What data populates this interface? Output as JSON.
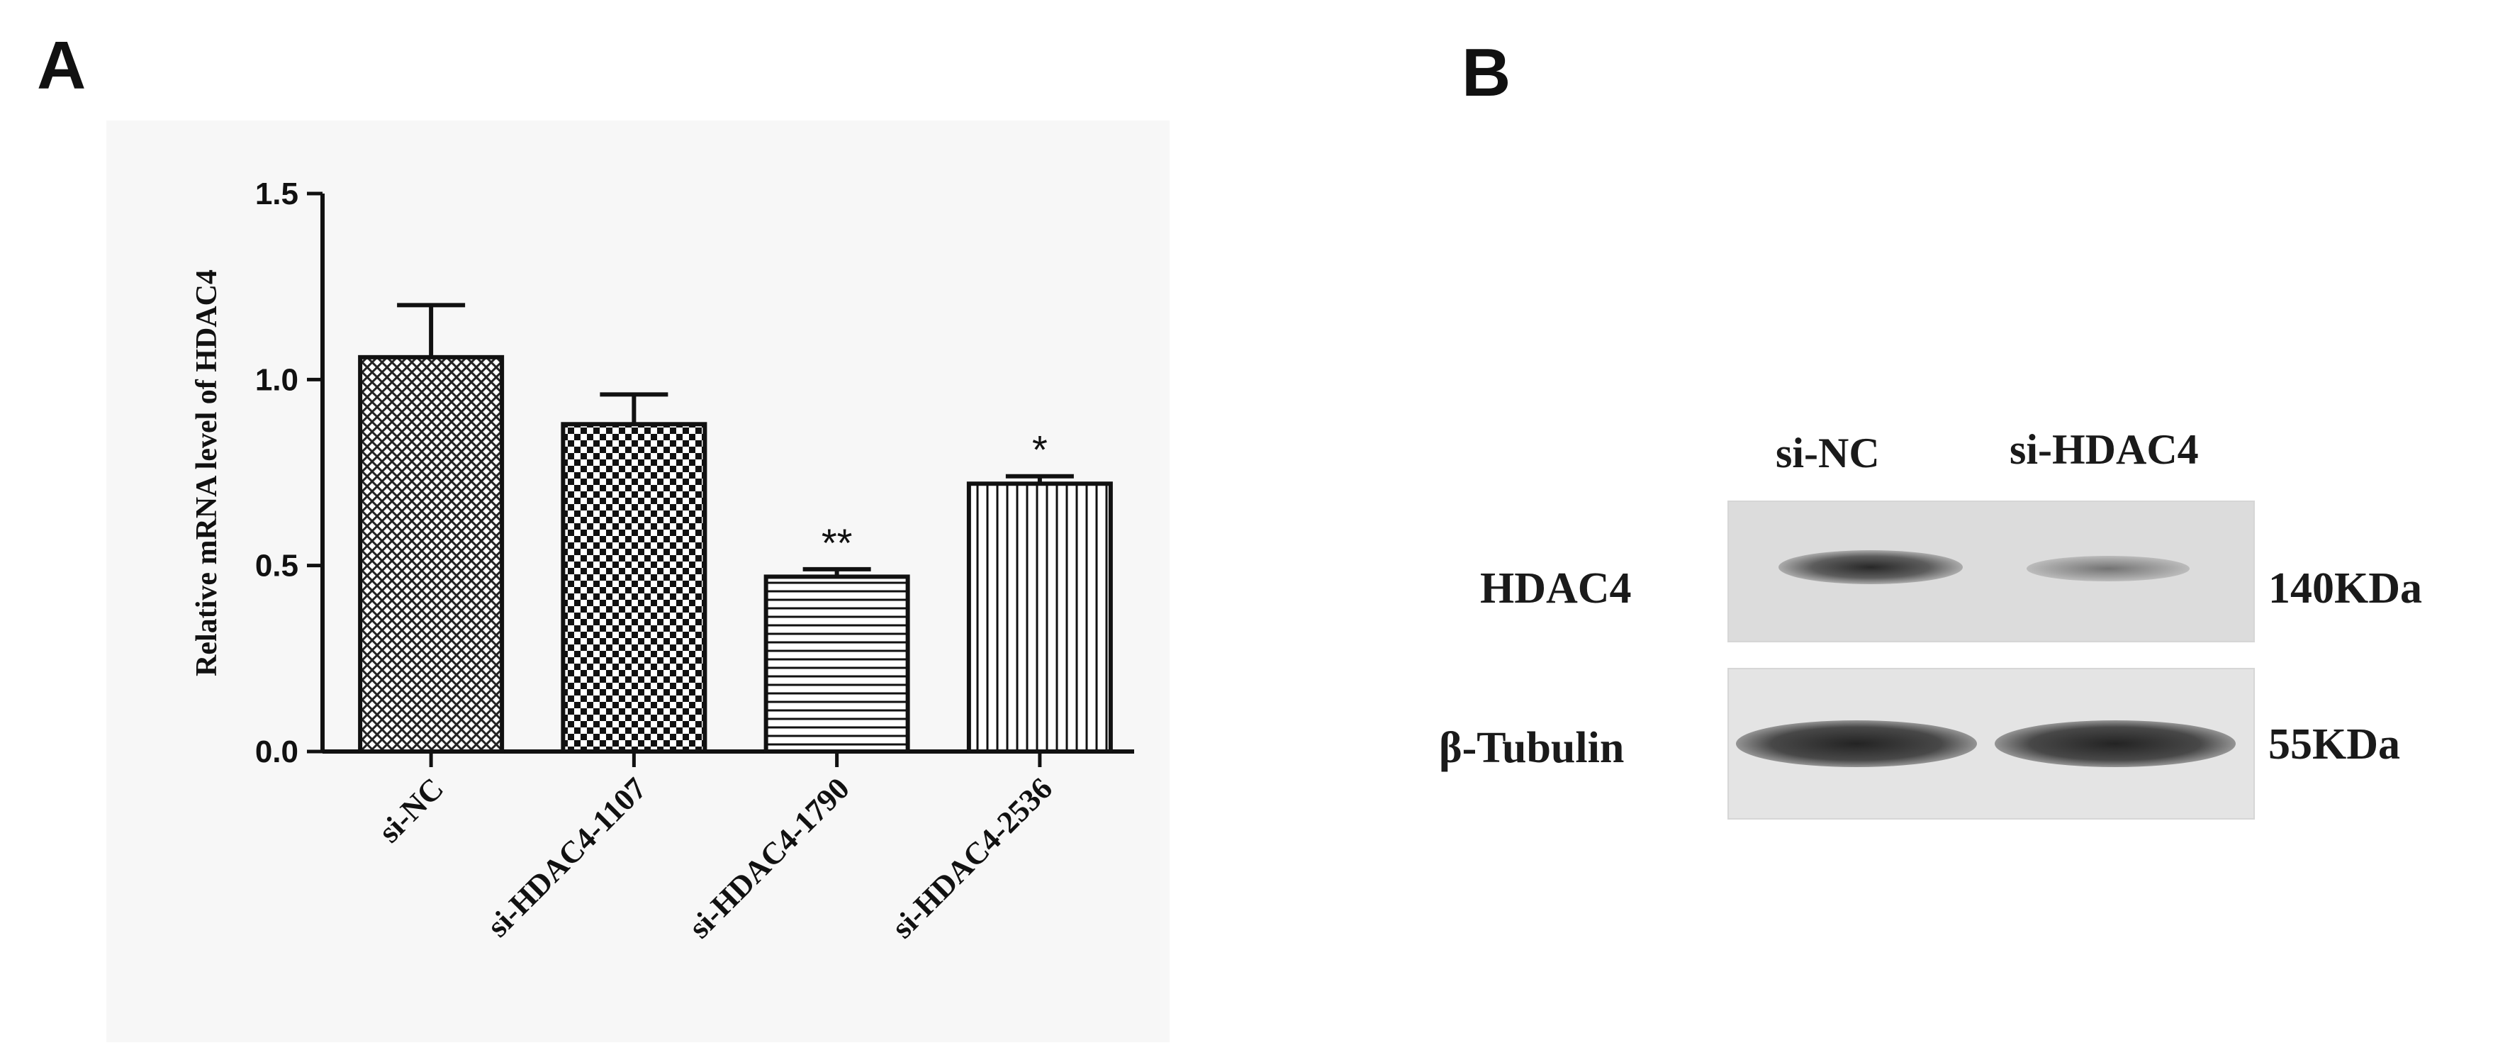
{
  "panels": {
    "a_letter": "A",
    "b_letter": "B"
  },
  "chart_data": {
    "type": "bar",
    "title": "",
    "xlabel": "",
    "ylabel": "Relative mRNA level of HDAC4",
    "ylim": [
      0,
      1.5
    ],
    "yticks": [
      "0.0",
      "0.5",
      "1.0",
      "1.5"
    ],
    "grid": false,
    "categories": [
      "si-NC",
      "si-HDAC4-1107",
      "si-HDAC4-1790",
      "si-HDAC4-2536"
    ],
    "values": [
      1.06,
      0.88,
      0.47,
      0.72
    ],
    "errors": [
      0.14,
      0.08,
      0.02,
      0.02
    ],
    "patterns": [
      "crosshatch",
      "checkerboard",
      "horizontal-lines",
      "vertical-lines"
    ],
    "annotations": [
      "",
      "",
      "**",
      "*"
    ],
    "colors": {
      "bar_fill": "#ffffff",
      "bar_stroke": "#111111",
      "pattern": "#111111"
    }
  },
  "western_blot": {
    "lanes": [
      "si-NC",
      "si-HDAC4"
    ],
    "rows": [
      {
        "protein": "HDAC4",
        "mw": "140KDa"
      },
      {
        "protein": "β-Tubulin",
        "mw": "55KDa"
      }
    ]
  }
}
